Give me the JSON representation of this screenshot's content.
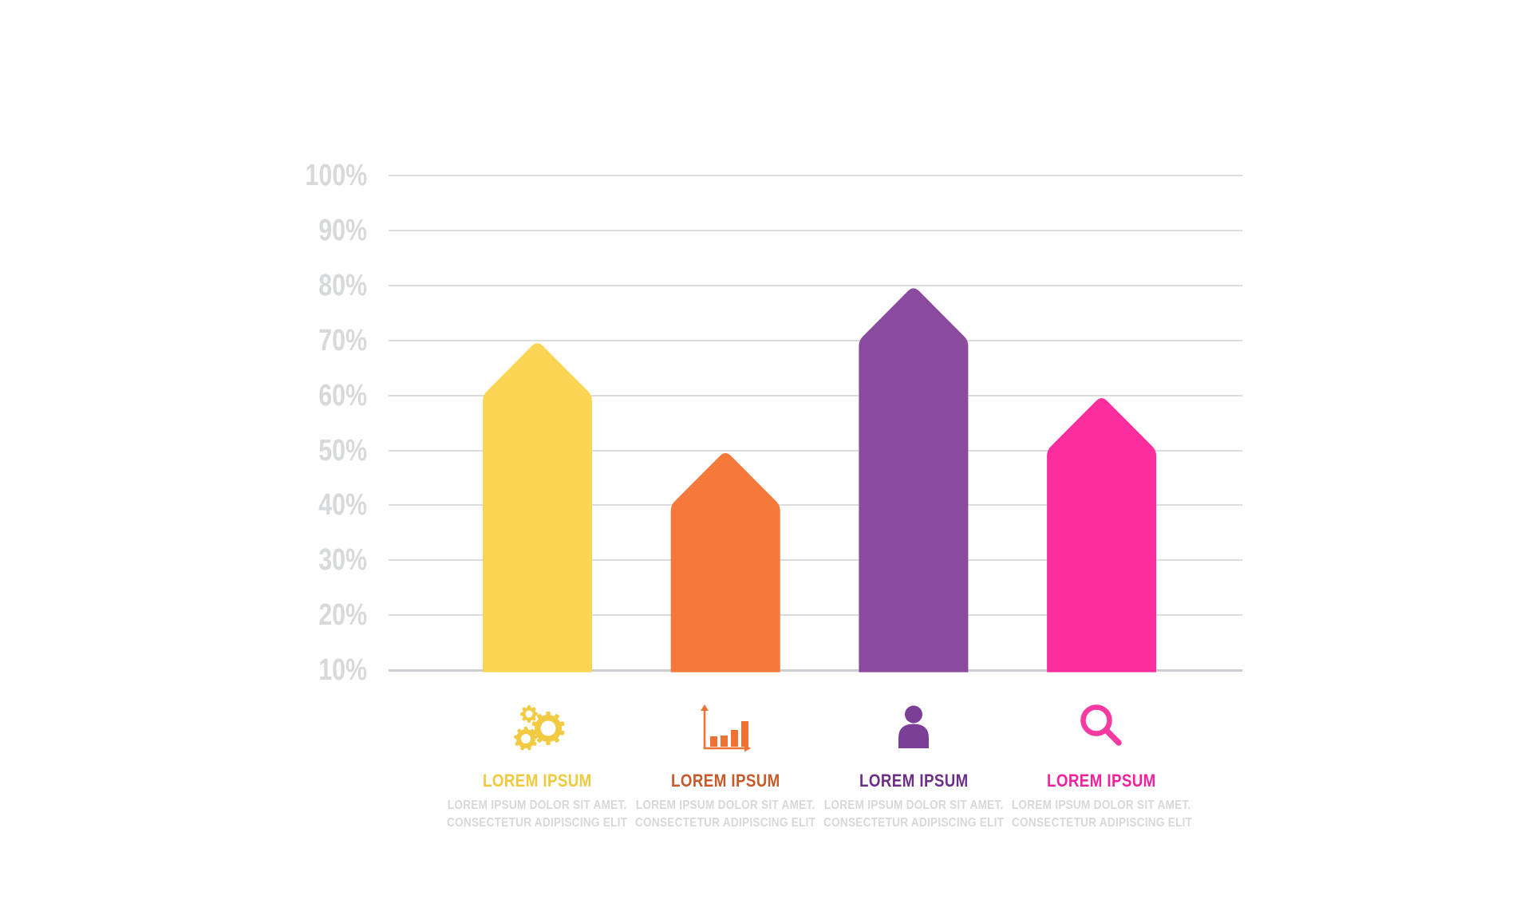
{
  "chart_data": {
    "type": "bar",
    "variant": "upward-arrow-bars-infographic",
    "title": "",
    "xlabel": "",
    "ylabel": "",
    "grid": true,
    "background": "#ffffff",
    "y_axis": {
      "unit": "%",
      "min": 10,
      "max": 100,
      "tick_step": 10,
      "ticks": [
        "100%",
        "90%",
        "80%",
        "70%",
        "60%",
        "50%",
        "40%",
        "30%",
        "20%",
        "10%"
      ],
      "tick_color": "#D7D9DB",
      "gridline_color": "#DADCDE",
      "baseline_color": "#CBCED0"
    },
    "series": [
      {
        "name": "lorem-ipsum-1",
        "tip_value": 70,
        "shoulder_value": 60,
        "bar_color": "#FBD553",
        "icon": "gears-icon",
        "icon_color": "#F2CB42",
        "title": "LOREM IPSUM",
        "title_color": "#F0C93D",
        "subtitle_line1": "LOREM IPSUM DOLOR SIT AMET.",
        "subtitle_line2": "CONSECTETUR ADIPISCING ELIT"
      },
      {
        "name": "lorem-ipsum-2",
        "tip_value": 50,
        "shoulder_value": 40,
        "bar_color": "#F5793A",
        "icon": "bar-chart-icon",
        "icon_color": "#ED7233",
        "title": "LOREM IPSUM",
        "title_color": "#C8592A",
        "subtitle_line1": "LOREM IPSUM DOLOR SIT AMET.",
        "subtitle_line2": "CONSECTETUR ADIPISCING ELIT"
      },
      {
        "name": "lorem-ipsum-3",
        "tip_value": 80,
        "shoulder_value": 70,
        "bar_color": "#8A4B9E",
        "icon": "person-icon",
        "icon_color": "#7C3F98",
        "title": "LOREM IPSUM",
        "title_color": "#6C2E88",
        "subtitle_line1": "LOREM IPSUM DOLOR SIT AMET.",
        "subtitle_line2": "CONSECTETUR ADIPISCING ELIT"
      },
      {
        "name": "lorem-ipsum-4",
        "tip_value": 60,
        "shoulder_value": 50,
        "bar_color": "#FC2E9E",
        "icon": "search-icon",
        "icon_color": "#F53AA2",
        "title": "LOREM IPSUM",
        "title_color": "#F321A0",
        "subtitle_line1": "LOREM IPSUM DOLOR SIT AMET.",
        "subtitle_line2": "CONSECTETUR ADIPISCING ELIT"
      }
    ]
  }
}
